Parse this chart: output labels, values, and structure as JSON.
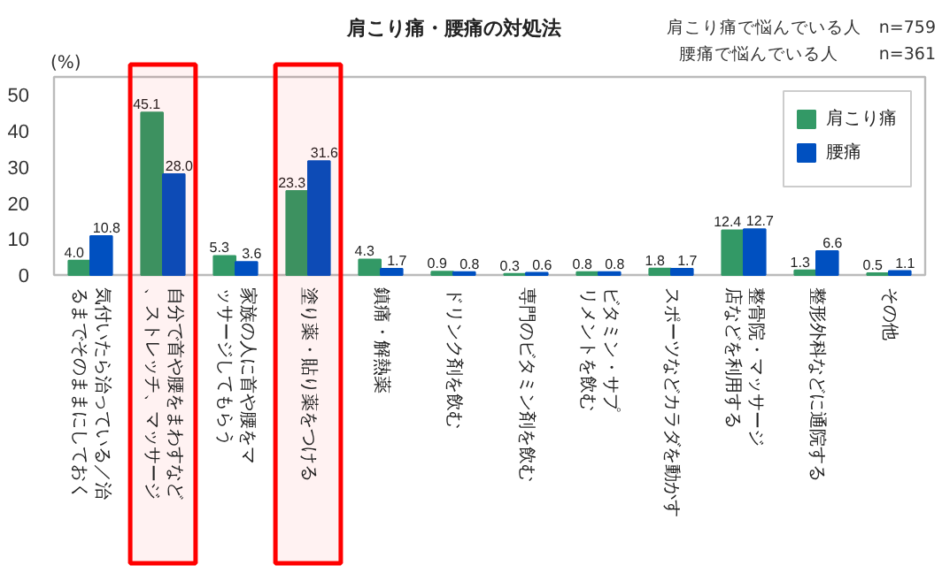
{
  "chart_data": {
    "type": "bar",
    "title": "肩こり痛・腰痛の対処法",
    "ylabel": "(%)",
    "annotations": [
      "肩こり痛で悩んでいる人　n=759",
      "腰痛で悩んでいる人　　 n=361"
    ],
    "categories": [
      "気付いたら治っている／治るまでそのままにしておく",
      "自分で首や腰をまわすなど、ストレッチ、マッサージ",
      "家族の人に首や腰をマッサージしてもらう",
      "塗り薬・貼り薬をつける",
      "鎮痛・解熱薬",
      "ドリンク剤を飲む",
      "専門のビタミン剤を飲む",
      "ビタミン・サプリメントを飲む",
      "スポーツなどカラダを動かす",
      "整骨院・マッサージ店などを利用する",
      "整形外科などに通院する",
      "その他"
    ],
    "series": [
      {
        "name": "肩こり痛",
        "color": "#339966",
        "values": [
          4.0,
          45.1,
          5.3,
          23.3,
          4.3,
          0.9,
          0.3,
          0.8,
          1.8,
          12.4,
          1.3,
          0.5
        ],
        "value_labels": [
          "4.0",
          "45.1",
          "5.3",
          "23.3",
          "4.3",
          "0.9",
          "0.3",
          "0.8",
          "1.8",
          "12.4",
          "1.3",
          "0.5"
        ]
      },
      {
        "name": "腰痛",
        "color": "#0050c0",
        "values": [
          10.8,
          28.0,
          3.6,
          31.6,
          1.7,
          0.8,
          0.6,
          0.8,
          1.7,
          12.7,
          6.6,
          1.1
        ],
        "value_labels": [
          "10.8",
          "28.0",
          "3.6",
          "31.6",
          "1.7",
          "0.8",
          "0.6",
          "0.8",
          "1.7",
          "12.7",
          "6.6",
          "1.1"
        ]
      }
    ],
    "ylim": [
      0,
      55
    ],
    "yticks": [
      0,
      10,
      20,
      30,
      40,
      50
    ],
    "grid": false,
    "legend": "top right",
    "bands": [
      {
        "axis": "x",
        "from": "自分で首や腰をまわすなど、ストレッチ、マッサージ",
        "to": "自分で首や腰をまわすなど、ストレッチ、マッサージ",
        "color": "#ff0000"
      },
      {
        "axis": "x",
        "from": "塗り薬・貼り薬をつける",
        "to": "塗り薬・貼り薬をつける",
        "color": "#ff0000"
      }
    ]
  }
}
